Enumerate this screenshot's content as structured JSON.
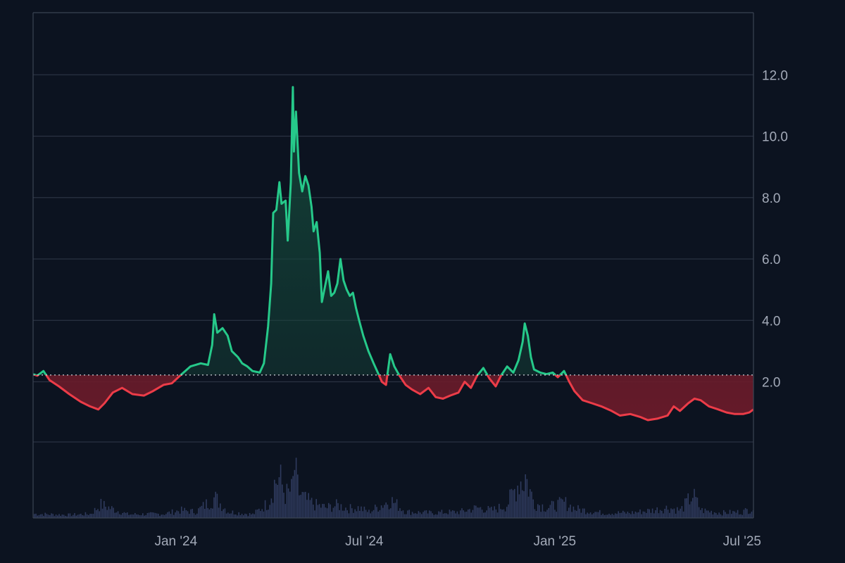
{
  "chart_data": {
    "type": "line",
    "baseline": 2.22,
    "colors": {
      "above": "#26c98a",
      "below": "#ec3c48",
      "above_fill": "#14473a",
      "below_fill": "#6a1b2a",
      "volume": "#2f3b5e",
      "baseline_marker": "#d0d4db"
    },
    "x_range": [
      "2023-08-16",
      "2025-07-12"
    ],
    "x_ticks": [
      {
        "date": "2024-01-01",
        "label": "Jan '24"
      },
      {
        "date": "2024-07-01",
        "label": "Jul '24"
      },
      {
        "date": "2025-01-01",
        "label": "Jan '25"
      },
      {
        "date": "2025-07-01",
        "label": "Jul '25"
      }
    ],
    "y_axis": {
      "range": [
        0,
        14
      ],
      "ticks": [
        2.0,
        4.0,
        6.0,
        8.0,
        10.0,
        12.0
      ],
      "position": "right"
    },
    "grid": true,
    "price_series": [
      [
        "2023-08-16",
        2.25
      ],
      [
        "2023-08-20",
        2.2
      ],
      [
        "2023-08-26",
        2.35
      ],
      [
        "2023-09-01",
        2.05
      ],
      [
        "2023-09-10",
        1.85
      ],
      [
        "2023-09-20",
        1.6
      ],
      [
        "2023-10-01",
        1.35
      ],
      [
        "2023-10-10",
        1.2
      ],
      [
        "2023-10-18",
        1.1
      ],
      [
        "2023-10-24",
        1.3
      ],
      [
        "2023-11-01",
        1.65
      ],
      [
        "2023-11-10",
        1.8
      ],
      [
        "2023-11-20",
        1.6
      ],
      [
        "2023-12-01",
        1.55
      ],
      [
        "2023-12-10",
        1.7
      ],
      [
        "2023-12-20",
        1.9
      ],
      [
        "2023-12-28",
        1.95
      ],
      [
        "2024-01-05",
        2.2
      ],
      [
        "2024-01-15",
        2.5
      ],
      [
        "2024-01-25",
        2.6
      ],
      [
        "2024-02-01",
        2.55
      ],
      [
        "2024-02-05",
        3.2
      ],
      [
        "2024-02-07",
        4.2
      ],
      [
        "2024-02-10",
        3.6
      ],
      [
        "2024-02-15",
        3.75
      ],
      [
        "2024-02-20",
        3.5
      ],
      [
        "2024-02-24",
        3.0
      ],
      [
        "2024-03-01",
        2.8
      ],
      [
        "2024-03-05",
        2.6
      ],
      [
        "2024-03-10",
        2.5
      ],
      [
        "2024-03-15",
        2.35
      ],
      [
        "2024-03-22",
        2.3
      ],
      [
        "2024-03-26",
        2.6
      ],
      [
        "2024-03-30",
        3.8
      ],
      [
        "2024-04-02",
        5.2
      ],
      [
        "2024-04-04",
        7.5
      ],
      [
        "2024-04-07",
        7.6
      ],
      [
        "2024-04-10",
        8.5
      ],
      [
        "2024-04-12",
        7.8
      ],
      [
        "2024-04-16",
        7.9
      ],
      [
        "2024-04-18",
        6.6
      ],
      [
        "2024-04-21",
        8.5
      ],
      [
        "2024-04-23",
        11.6
      ],
      [
        "2024-04-24",
        9.5
      ],
      [
        "2024-04-26",
        10.8
      ],
      [
        "2024-04-29",
        8.8
      ],
      [
        "2024-05-02",
        8.2
      ],
      [
        "2024-05-05",
        8.7
      ],
      [
        "2024-05-08",
        8.4
      ],
      [
        "2024-05-11",
        7.7
      ],
      [
        "2024-05-13",
        6.9
      ],
      [
        "2024-05-16",
        7.2
      ],
      [
        "2024-05-19",
        6.2
      ],
      [
        "2024-05-21",
        4.6
      ],
      [
        "2024-05-24",
        5.1
      ],
      [
        "2024-05-27",
        5.6
      ],
      [
        "2024-05-30",
        4.8
      ],
      [
        "2024-06-02",
        4.9
      ],
      [
        "2024-06-05",
        5.2
      ],
      [
        "2024-06-08",
        6.0
      ],
      [
        "2024-06-11",
        5.3
      ],
      [
        "2024-06-14",
        5.0
      ],
      [
        "2024-06-17",
        4.8
      ],
      [
        "2024-06-20",
        4.9
      ],
      [
        "2024-06-23",
        4.4
      ],
      [
        "2024-06-26",
        4.0
      ],
      [
        "2024-06-30",
        3.5
      ],
      [
        "2024-07-05",
        3.0
      ],
      [
        "2024-07-10",
        2.6
      ],
      [
        "2024-07-14",
        2.3
      ],
      [
        "2024-07-18",
        2.0
      ],
      [
        "2024-07-22",
        1.9
      ],
      [
        "2024-07-26",
        2.9
      ],
      [
        "2024-07-30",
        2.5
      ],
      [
        "2024-08-04",
        2.2
      ],
      [
        "2024-08-10",
        1.9
      ],
      [
        "2024-08-16",
        1.75
      ],
      [
        "2024-08-24",
        1.6
      ],
      [
        "2024-09-01",
        1.8
      ],
      [
        "2024-09-08",
        1.5
      ],
      [
        "2024-09-15",
        1.45
      ],
      [
        "2024-09-22",
        1.55
      ],
      [
        "2024-09-30",
        1.65
      ],
      [
        "2024-10-06",
        2.0
      ],
      [
        "2024-10-12",
        1.8
      ],
      [
        "2024-10-18",
        2.2
      ],
      [
        "2024-10-24",
        2.45
      ],
      [
        "2024-10-30",
        2.1
      ],
      [
        "2024-11-05",
        1.85
      ],
      [
        "2024-11-10",
        2.2
      ],
      [
        "2024-11-16",
        2.5
      ],
      [
        "2024-11-22",
        2.3
      ],
      [
        "2024-11-27",
        2.7
      ],
      [
        "2024-12-01",
        3.3
      ],
      [
        "2024-12-03",
        3.9
      ],
      [
        "2024-12-06",
        3.5
      ],
      [
        "2024-12-09",
        2.8
      ],
      [
        "2024-12-12",
        2.4
      ],
      [
        "2024-12-18",
        2.3
      ],
      [
        "2024-12-24",
        2.25
      ],
      [
        "2024-12-30",
        2.3
      ],
      [
        "2025-01-04",
        2.15
      ],
      [
        "2025-01-10",
        2.35
      ],
      [
        "2025-01-15",
        2.0
      ],
      [
        "2025-01-20",
        1.7
      ],
      [
        "2025-01-28",
        1.4
      ],
      [
        "2025-02-06",
        1.3
      ],
      [
        "2025-02-15",
        1.2
      ],
      [
        "2025-02-25",
        1.05
      ],
      [
        "2025-03-05",
        0.9
      ],
      [
        "2025-03-15",
        0.95
      ],
      [
        "2025-03-25",
        0.85
      ],
      [
        "2025-04-01",
        0.75
      ],
      [
        "2025-04-10",
        0.8
      ],
      [
        "2025-04-20",
        0.9
      ],
      [
        "2025-04-26",
        1.2
      ],
      [
        "2025-05-02",
        1.05
      ],
      [
        "2025-05-10",
        1.3
      ],
      [
        "2025-05-16",
        1.45
      ],
      [
        "2025-05-22",
        1.4
      ],
      [
        "2025-05-30",
        1.2
      ],
      [
        "2025-06-08",
        1.1
      ],
      [
        "2025-06-16",
        1.0
      ],
      [
        "2025-06-24",
        0.95
      ],
      [
        "2025-07-02",
        0.95
      ],
      [
        "2025-07-08",
        1.0
      ],
      [
        "2025-07-12",
        1.1
      ]
    ],
    "volume_series": [
      [
        "2023-08-16",
        0.08
      ],
      [
        "2023-09-20",
        0.06
      ],
      [
        "2023-10-10",
        0.08
      ],
      [
        "2023-10-20",
        0.26
      ],
      [
        "2023-11-15",
        0.07
      ],
      [
        "2023-12-20",
        0.08
      ],
      [
        "2024-01-05",
        0.15
      ],
      [
        "2024-01-20",
        0.12
      ],
      [
        "2024-02-07",
        0.4
      ],
      [
        "2024-02-20",
        0.12
      ],
      [
        "2024-03-15",
        0.07
      ],
      [
        "2024-03-30",
        0.3
      ],
      [
        "2024-04-05",
        0.7
      ],
      [
        "2024-04-10",
        0.78
      ],
      [
        "2024-04-15",
        0.45
      ],
      [
        "2024-04-22",
        0.55
      ],
      [
        "2024-04-24",
        1.0
      ],
      [
        "2024-04-28",
        0.5
      ],
      [
        "2024-05-05",
        0.35
      ],
      [
        "2024-05-15",
        0.25
      ],
      [
        "2024-05-25",
        0.2
      ],
      [
        "2024-06-05",
        0.25
      ],
      [
        "2024-06-15",
        0.18
      ],
      [
        "2024-06-25",
        0.2
      ],
      [
        "2024-07-05",
        0.12
      ],
      [
        "2024-07-26",
        0.35
      ],
      [
        "2024-08-10",
        0.12
      ],
      [
        "2024-09-01",
        0.1
      ],
      [
        "2024-10-01",
        0.12
      ],
      [
        "2024-10-18",
        0.2
      ],
      [
        "2024-11-01",
        0.15
      ],
      [
        "2024-11-15",
        0.25
      ],
      [
        "2024-11-28",
        0.75
      ],
      [
        "2024-12-01",
        0.65
      ],
      [
        "2024-12-03",
        0.85
      ],
      [
        "2024-12-06",
        0.6
      ],
      [
        "2024-12-12",
        0.3
      ],
      [
        "2024-12-24",
        0.2
      ],
      [
        "2025-01-10",
        0.3
      ],
      [
        "2025-01-20",
        0.18
      ],
      [
        "2025-02-15",
        0.1
      ],
      [
        "2025-03-15",
        0.1
      ],
      [
        "2025-04-05",
        0.15
      ],
      [
        "2025-04-20",
        0.2
      ],
      [
        "2025-05-02",
        0.15
      ],
      [
        "2025-05-14",
        0.45
      ],
      [
        "2025-05-22",
        0.15
      ],
      [
        "2025-06-10",
        0.1
      ],
      [
        "2025-07-01",
        0.12
      ],
      [
        "2025-07-12",
        0.2
      ]
    ]
  }
}
